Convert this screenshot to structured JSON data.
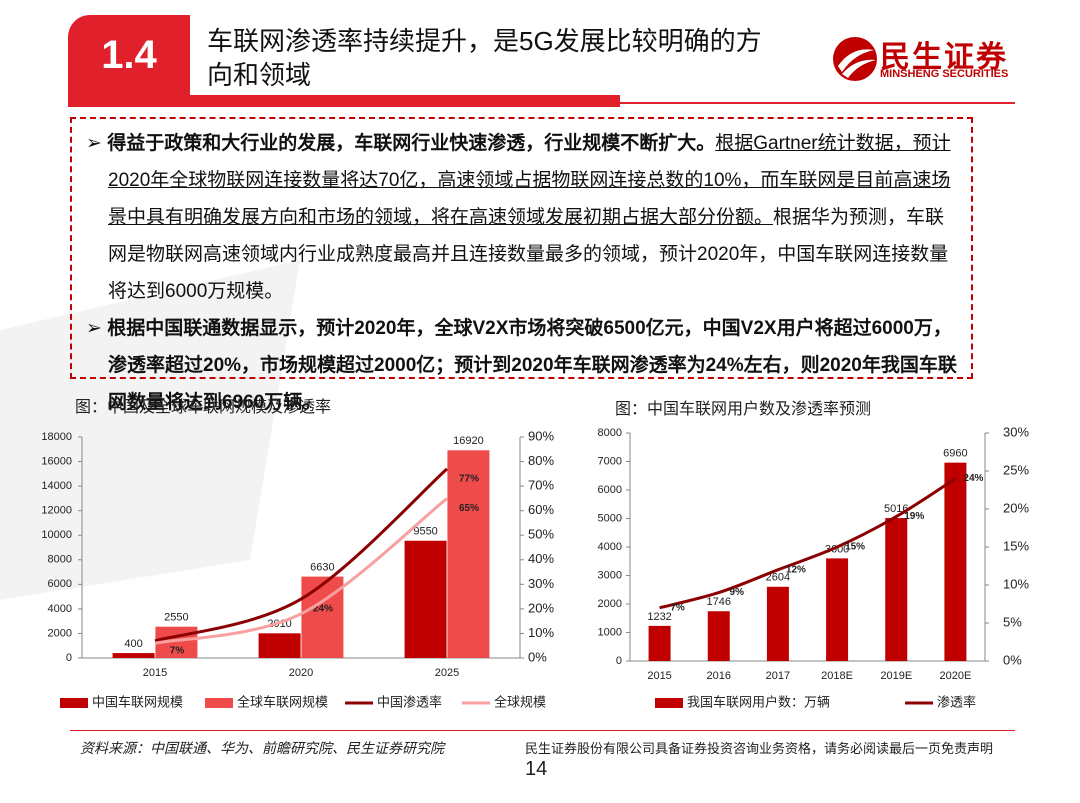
{
  "header": {
    "number": "1.4",
    "title": "车联网渗透率持续提升，是5G发展比较明确的方向和领域",
    "logo": {
      "name": "民生证券",
      "english": "MINSHENG SECURITIES"
    }
  },
  "bullets": [
    {
      "bold": "得益于政策和大行业的发展，车联网行业快速渗透，行业规模不断扩大。",
      "underline": "根据Gartner统计数据，预计2020年全球物联网连接数量将达70亿，高速领域占据物联网连接总数的10%，而车联网是目前高速场景中具有明确发展方向和市场的领域，将在高速领域发展初期占据大部分份额。",
      "normal": "根据华为预测，车联网是物联网高速领域内行业成熟度最高并且连接数量最多的领域，预计2020年，中国车联网连接数量将达到6000万规模。"
    },
    {
      "bold": "根据中国联通数据显示，预计2020年，全球V2X市场将突破6500亿元，中国V2X用户将超过6000万，渗透率超过20%，市场规模超过2000亿；预计到2020年车联网渗透率为24%左右，则2020年我国车联网数量将达到6960万辆。"
    }
  ],
  "chart_data": [
    {
      "type": "bar",
      "title": "图：中国及全球车联网规模及渗透率",
      "categories": [
        "2015",
        "2020",
        "2025"
      ],
      "series": [
        {
          "name": "中国车联网规模",
          "color": "#c00000",
          "values": [
            400,
            2010,
            9550
          ]
        },
        {
          "name": "全球车联网规模",
          "color": "#f04b4b",
          "values": [
            2550,
            6630,
            16920
          ]
        },
        {
          "name": "中国渗透率",
          "type": "line",
          "axis": "y2",
          "color": "#8b0000",
          "values": [
            7,
            24,
            77
          ],
          "value_labels": [
            "7%",
            "24%",
            "77%"
          ]
        },
        {
          "name": "全球规模",
          "type": "line",
          "axis": "y2",
          "color": "#f8a0a0",
          "values": [
            6,
            18,
            65
          ],
          "value_labels": [
            null,
            null,
            "65%"
          ]
        }
      ],
      "ylim": [
        0,
        18000
      ],
      "yticks": [
        0,
        2000,
        4000,
        6000,
        8000,
        10000,
        12000,
        14000,
        16000,
        18000
      ],
      "y2lim": [
        0,
        90
      ],
      "y2ticks": [
        {
          "value": 0,
          "label": "0%"
        },
        {
          "value": 10,
          "label": "10%"
        },
        {
          "value": 20,
          "label": "20%"
        },
        {
          "value": 30,
          "label": "30%"
        },
        {
          "value": 40,
          "label": "40%"
        },
        {
          "value": 50,
          "label": "50%"
        },
        {
          "value": 60,
          "label": "60%"
        },
        {
          "value": 70,
          "label": "70%"
        },
        {
          "value": 80,
          "label": "80%"
        },
        {
          "value": 90,
          "label": "90%"
        }
      ],
      "legend": "bottom"
    },
    {
      "type": "bar",
      "title": "图：中国车联网用户数及渗透率预测",
      "categories": [
        "2015",
        "2016",
        "2017",
        "2018E",
        "2019E",
        "2020E"
      ],
      "series": [
        {
          "name": "我国车联网用户数：万辆",
          "color": "#c00000",
          "values": [
            1232,
            1746,
            2604,
            3600,
            5016,
            6960
          ]
        },
        {
          "name": "渗透率",
          "type": "line",
          "axis": "y2",
          "color": "#8b0000",
          "values": [
            7,
            9,
            12,
            15,
            19,
            24
          ],
          "value_labels": [
            "7%",
            "9%",
            "12%",
            "15%",
            "19%",
            "24%"
          ]
        }
      ],
      "ylim": [
        0,
        8000
      ],
      "yticks": [
        0,
        1000,
        2000,
        3000,
        4000,
        5000,
        6000,
        7000,
        8000
      ],
      "y2lim": [
        0,
        30
      ],
      "y2ticks": [
        {
          "value": 0,
          "label": "0%"
        },
        {
          "value": 5,
          "label": "5%"
        },
        {
          "value": 10,
          "label": "10%"
        },
        {
          "value": 15,
          "label": "15%"
        },
        {
          "value": 20,
          "label": "20%"
        },
        {
          "value": 25,
          "label": "25%"
        },
        {
          "value": 30,
          "label": "30%"
        }
      ],
      "legend": "bottom"
    }
  ],
  "footer": {
    "source": "资料来源：中国联通、华为、前瞻研究院、民生证券研究院",
    "disclaimer": "民生证券股份有限公司具备证券投资咨询业务资格，请务必阅读最后一页免责声明",
    "page": "14"
  }
}
